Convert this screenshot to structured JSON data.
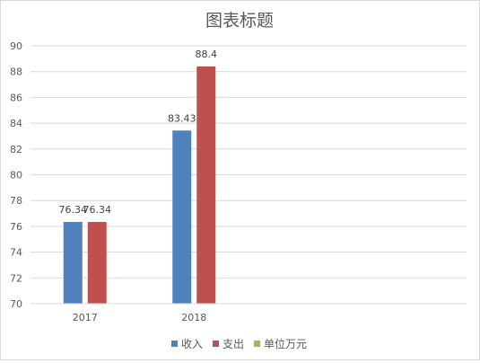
{
  "chart_data": {
    "type": "bar",
    "title": "图表标题",
    "categories": [
      "2017",
      "2018",
      "",
      ""
    ],
    "series": [
      {
        "name": "收入",
        "color": "#4f81bd",
        "values": [
          76.34,
          83.43,
          null,
          null
        ]
      },
      {
        "name": "支出",
        "color": "#c0504d",
        "values": [
          76.34,
          88.4,
          null,
          null
        ]
      },
      {
        "name": "单位万元",
        "color": "#9bbb59",
        "values": [
          null,
          null,
          null,
          null
        ]
      }
    ],
    "data_labels": [
      [
        "76.34",
        "83.43",
        "",
        ""
      ],
      [
        "76.34",
        "88.4",
        "",
        ""
      ],
      [
        "",
        "",
        "",
        ""
      ]
    ],
    "ylim": [
      70,
      90
    ],
    "yticks": [
      "70",
      "72",
      "74",
      "76",
      "78",
      "80",
      "82",
      "84",
      "86",
      "88",
      "90"
    ],
    "xlabel": "",
    "ylabel": "",
    "grid": true,
    "legend_position": "bottom"
  }
}
